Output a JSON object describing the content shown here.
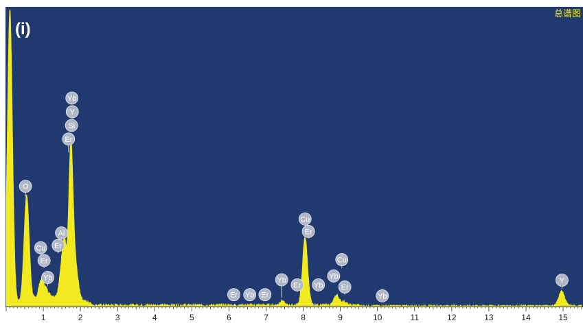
{
  "chart_data": {
    "type": "area",
    "panel_label": "(i)",
    "corner_label": "总谱图",
    "xlabel": "",
    "ylabel": "",
    "xlim": [
      0,
      15.5
    ],
    "ylim": [
      0,
      100
    ],
    "x_ticks": [
      1,
      2,
      3,
      4,
      5,
      6,
      7,
      8,
      9,
      10,
      11,
      12,
      13,
      14,
      15
    ],
    "grid": false,
    "legend": "none",
    "colors": {
      "background": "#203a70",
      "spectrum": "#f2ea1e",
      "marker_fill": "#b0b8c8",
      "marker_text": "#ffffff",
      "label_text": "#ffffff",
      "corner_text": "#f2ea1e",
      "axis": "#1c2a4a"
    },
    "peaks": [
      {
        "x": 0.1,
        "height": 100,
        "width": 0.07
      },
      {
        "x": 0.55,
        "height": 36,
        "width": 0.07
      },
      {
        "x": 0.93,
        "height": 5,
        "width": 0.06
      },
      {
        "x": 1.05,
        "height": 3,
        "width": 0.08
      },
      {
        "x": 1.49,
        "height": 9,
        "width": 0.06
      },
      {
        "x": 1.57,
        "height": 16,
        "width": 0.05
      },
      {
        "x": 1.74,
        "height": 50,
        "width": 0.06
      },
      {
        "x": 1.86,
        "height": 11,
        "width": 0.08
      },
      {
        "x": 7.42,
        "height": 1.5,
        "width": 0.06
      },
      {
        "x": 8.05,
        "height": 23,
        "width": 0.07
      },
      {
        "x": 8.9,
        "height": 3.4,
        "width": 0.07
      },
      {
        "x": 9.1,
        "height": 1.2,
        "width": 0.06
      },
      {
        "x": 14.96,
        "height": 5,
        "width": 0.08
      }
    ],
    "noise_level": 1.0,
    "element_markers": [
      {
        "label": "O",
        "x": 0.52,
        "y": 40.5,
        "stem_y": 37
      },
      {
        "label": "Cu",
        "x": 0.93,
        "y": 19.8,
        "stem_y": 17
      },
      {
        "label": "Er",
        "x": 1.02,
        "y": 15.5,
        "stem_y": 13
      },
      {
        "label": "Yb",
        "x": 1.12,
        "y": 9.8,
        "stem_y": 7
      },
      {
        "label": "Al",
        "x": 1.49,
        "y": 24.8,
        "stem_y": 22
      },
      {
        "label": "Er",
        "x": 1.4,
        "y": 20.6,
        "stem_y": 18
      },
      {
        "label": "Yb",
        "x": 1.77,
        "y": 70.2
      },
      {
        "label": "Y",
        "x": 1.78,
        "y": 65.6
      },
      {
        "label": "Si",
        "x": 1.76,
        "y": 61.0
      },
      {
        "label": "Er",
        "x": 1.68,
        "y": 56.4,
        "stem_y": 52
      },
      {
        "label": "Er",
        "x": 6.13,
        "y": 4.0,
        "stem_y": 2
      },
      {
        "label": "Yb",
        "x": 6.56,
        "y": 4.0,
        "stem_y": 2
      },
      {
        "label": "Er",
        "x": 6.97,
        "y": 4.0,
        "stem_y": 2
      },
      {
        "label": "Yb",
        "x": 7.42,
        "y": 9.0,
        "stem_y": 3
      },
      {
        "label": "Er",
        "x": 7.84,
        "y": 7.3,
        "stem_y": 5
      },
      {
        "label": "Cu",
        "x": 8.05,
        "y": 29.5,
        "stem_y": 27
      },
      {
        "label": "Er",
        "x": 8.14,
        "y": 25.3,
        "stem_y": 23
      },
      {
        "label": "Yb",
        "x": 8.41,
        "y": 7.3,
        "stem_y": 5
      },
      {
        "label": "Yb",
        "x": 8.82,
        "y": 10.3,
        "stem_y": 8
      },
      {
        "label": "Cu",
        "x": 9.04,
        "y": 15.8,
        "stem_y": 13
      },
      {
        "label": "Er",
        "x": 9.12,
        "y": 6.6,
        "stem_y": 4
      },
      {
        "label": "Yb",
        "x": 10.13,
        "y": 3.6,
        "stem_y": 2
      },
      {
        "label": "Y",
        "x": 14.97,
        "y": 8.9,
        "stem_y": 6
      }
    ]
  }
}
